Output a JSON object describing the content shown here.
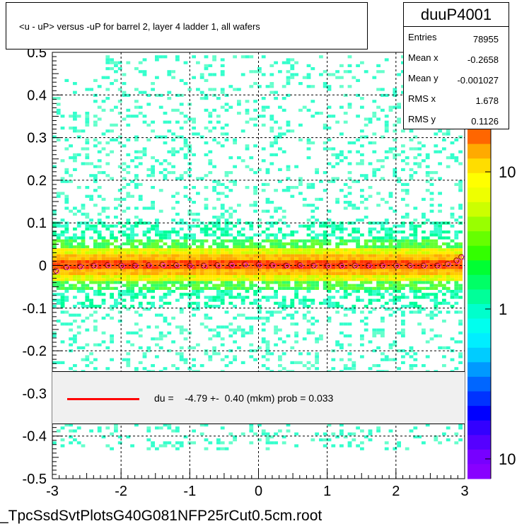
{
  "title": "<u - uP>       versus  -uP for barrel 2, layer 4 ladder 1, all wafers",
  "stats": {
    "name": "duuP4001",
    "rows": [
      {
        "label": "Entries",
        "value": "78955"
      },
      {
        "label": "Mean x",
        "value": "-0.2658"
      },
      {
        "label": "Mean y",
        "value": "-0.001027"
      },
      {
        "label": "RMS x",
        "value": "1.678"
      },
      {
        "label": "RMS y",
        "value": "0.1126"
      }
    ]
  },
  "legend": {
    "text": "du =    -4.79 +-  0.40 (mkm) prob = 0.033",
    "line_color": "#ff0000"
  },
  "footer": "_TpcSsdSvtPlotsG40G081NFP25rCut0.5cm.root",
  "chart_data": {
    "type": "heatmap",
    "xlim": [
      -3,
      3
    ],
    "ylim": [
      -0.5,
      0.5
    ],
    "x_ticks": [
      "-3",
      "-2",
      "-1",
      "0",
      "1",
      "2",
      "3"
    ],
    "y_ticks": [
      "-0.5",
      "-0.4",
      "-0.3",
      "-0.2",
      "-0.1",
      "0",
      "0.1",
      "0.2",
      "0.3",
      "0.4",
      "0.5"
    ],
    "grid": true,
    "log_z": true,
    "z_ticks": [
      "10",
      "1",
      "10"
    ],
    "profile_color": "#8b0000",
    "profile_points": [
      {
        "x": -2.95,
        "y": -0.012
      },
      {
        "x": -2.8,
        "y": -0.004
      },
      {
        "x": -2.6,
        "y": -0.002
      },
      {
        "x": -2.4,
        "y": 0.0
      },
      {
        "x": -2.2,
        "y": 0.001
      },
      {
        "x": -2.0,
        "y": 0.0
      },
      {
        "x": -1.8,
        "y": 0.0
      },
      {
        "x": -1.6,
        "y": 0.001
      },
      {
        "x": -1.4,
        "y": 0.002
      },
      {
        "x": -1.2,
        "y": 0.001
      },
      {
        "x": -1.0,
        "y": 0.0
      },
      {
        "x": -0.8,
        "y": 0.0
      },
      {
        "x": -0.6,
        "y": 0.001
      },
      {
        "x": -0.4,
        "y": 0.002
      },
      {
        "x": -0.2,
        "y": 0.003
      },
      {
        "x": 0.0,
        "y": 0.002
      },
      {
        "x": 0.2,
        "y": 0.001
      },
      {
        "x": 0.4,
        "y": 0.0
      },
      {
        "x": 0.6,
        "y": 0.001
      },
      {
        "x": 0.8,
        "y": 0.0
      },
      {
        "x": 1.0,
        "y": 0.0
      },
      {
        "x": 1.2,
        "y": 0.0
      },
      {
        "x": 1.4,
        "y": 0.0
      },
      {
        "x": 1.6,
        "y": 0.0
      },
      {
        "x": 1.8,
        "y": 0.0
      },
      {
        "x": 2.0,
        "y": 0.0
      },
      {
        "x": 2.2,
        "y": 0.0
      },
      {
        "x": 2.4,
        "y": 0.0
      },
      {
        "x": 2.6,
        "y": 0.0
      },
      {
        "x": 2.75,
        "y": 0.004
      },
      {
        "x": 2.88,
        "y": 0.012
      },
      {
        "x": 2.95,
        "y": 0.02
      }
    ],
    "fit_value": -4.79,
    "fit_error": 0.4,
    "fit_unit": "mkm",
    "fit_prob": 0.033
  }
}
